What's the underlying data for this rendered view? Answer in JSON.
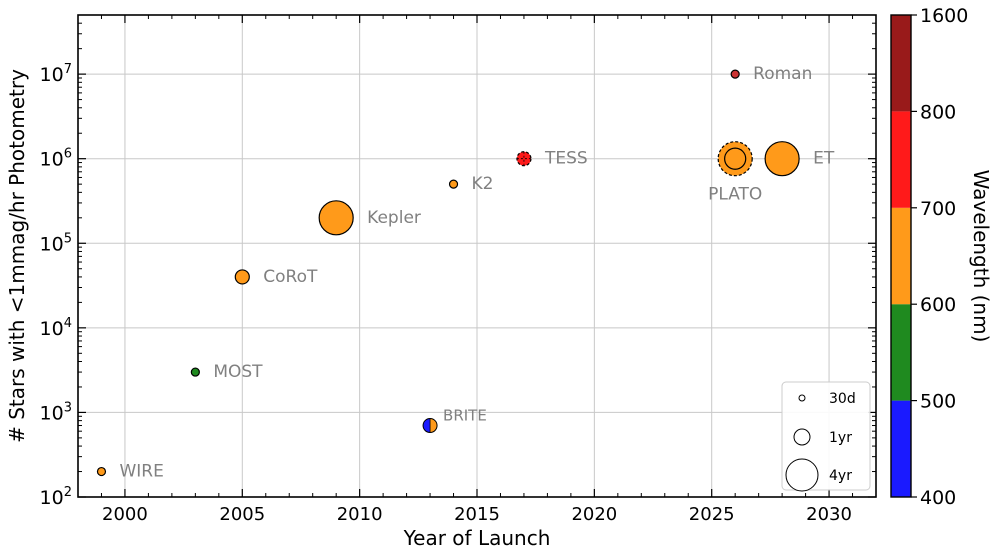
{
  "chart_data": {
    "type": "scatter",
    "title": "",
    "xlabel": "Year of Launch",
    "ylabel": "# Stars with <1mmag/hr Photometry",
    "xlim": [
      1998,
      2032
    ],
    "ylim": [
      100,
      50000000
    ],
    "yscale": "log",
    "grid": true,
    "x_ticks": [
      {
        "value": 2000,
        "label": "2000"
      },
      {
        "value": 2005,
        "label": "2005"
      },
      {
        "value": 2010,
        "label": "2010"
      },
      {
        "value": 2015,
        "label": "2015"
      },
      {
        "value": 2020,
        "label": "2020"
      },
      {
        "value": 2025,
        "label": "2025"
      },
      {
        "value": 2030,
        "label": "2030"
      }
    ],
    "y_ticks": [
      {
        "value": 100,
        "base": "10",
        "exp": "2"
      },
      {
        "value": 1000,
        "base": "10",
        "exp": "3"
      },
      {
        "value": 10000,
        "base": "10",
        "exp": "4"
      },
      {
        "value": 100000,
        "base": "10",
        "exp": "5"
      },
      {
        "value": 1000000,
        "base": "10",
        "exp": "6"
      },
      {
        "value": 10000000,
        "base": "10",
        "exp": "7"
      }
    ],
    "points": [
      {
        "label": "WIRE",
        "year": 1999,
        "stars": 200,
        "size": "small",
        "colors": [
          "#ff9a1a"
        ],
        "label_pos": "right"
      },
      {
        "label": "MOST",
        "year": 2003,
        "stars": 3000,
        "size": "small",
        "colors": [
          "#1f8a1f"
        ],
        "label_pos": "right"
      },
      {
        "label": "CoRoT",
        "year": 2005,
        "stars": 40000,
        "size": "medium",
        "colors": [
          "#ff9a1a"
        ],
        "label_pos": "right"
      },
      {
        "label": "Kepler",
        "year": 2009,
        "stars": 200000,
        "size": "large",
        "colors": [
          "#ff9a1a"
        ],
        "label_pos": "right"
      },
      {
        "label": "K2",
        "year": 2014,
        "stars": 500000,
        "size": "small",
        "colors": [
          "#ff9a1a"
        ],
        "label_pos": "right"
      },
      {
        "label": "BRITE",
        "year": 2013,
        "stars": 700,
        "size": "medium",
        "colors": [
          "#1a1aff",
          "#ff9a1a"
        ],
        "split": true,
        "label_pos": "right-up"
      },
      {
        "label": "TESS",
        "year": 2017,
        "stars": 1000000,
        "size": "medium",
        "colors": [
          "#ff1a1a"
        ],
        "dashed": true,
        "label_pos": "right"
      },
      {
        "label": "PLATO",
        "year": 2026,
        "stars": 1000000,
        "size": "large",
        "colors": [
          "#ff9a1a"
        ],
        "dashed": true,
        "inner": true,
        "label_pos": "below"
      },
      {
        "label": "ET",
        "year": 2028,
        "stars": 1000000,
        "size": "large",
        "colors": [
          "#ff9a1a"
        ],
        "label_pos": "right"
      },
      {
        "label": "Roman",
        "year": 2026,
        "stars": 10000000,
        "size": "small",
        "colors": [
          "#cc3333"
        ],
        "label_pos": "right"
      }
    ],
    "size_legend": {
      "placement": "lower-right",
      "entries": [
        "30d",
        "1yr",
        "4yr"
      ]
    },
    "colorbar": {
      "label": "Wavelength (nm)",
      "ticks": [
        "400",
        "500",
        "600",
        "700",
        "800",
        "1600"
      ],
      "segments": [
        {
          "from": "400",
          "to": "500",
          "color": "#1a1aff"
        },
        {
          "from": "500",
          "to": "600",
          "color": "#1f8a1f"
        },
        {
          "from": "600",
          "to": "700",
          "color": "#ff9a1a"
        },
        {
          "from": "700",
          "to": "800",
          "color": "#ff1a1a"
        },
        {
          "from": "800",
          "to": "1600",
          "color": "#991a1a"
        }
      ]
    }
  }
}
